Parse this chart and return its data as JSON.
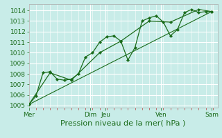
{
  "xlabel": "Pression niveau de la mer( hPa )",
  "bg_color": "#c8ece8",
  "grid_color": "#ffffff",
  "line_color": "#1a6b1a",
  "ylim": [
    1004.8,
    1014.6
  ],
  "yticks": [
    1005,
    1006,
    1007,
    1008,
    1009,
    1010,
    1011,
    1012,
    1013,
    1014
  ],
  "xlim": [
    0,
    160
  ],
  "day_labels": [
    "Mer",
    "Dim",
    "Jeu",
    "Ven",
    "Sam"
  ],
  "day_positions": [
    0,
    52,
    65,
    112,
    155
  ],
  "series1_x": [
    0,
    6,
    12,
    18,
    24,
    30,
    36,
    42,
    48,
    54,
    60,
    66,
    72,
    78,
    84,
    90,
    96,
    102,
    108,
    114,
    120,
    126,
    132,
    138,
    144,
    150,
    155
  ],
  "series1_y": [
    1005.1,
    1005.9,
    1008.1,
    1008.2,
    1007.5,
    1007.4,
    1007.5,
    1008.0,
    1009.6,
    1010.0,
    1011.0,
    1011.5,
    1011.6,
    1011.1,
    1009.3,
    1010.5,
    1013.0,
    1013.3,
    1013.5,
    1012.9,
    1011.6,
    1012.2,
    1013.8,
    1014.1,
    1013.8,
    1013.9,
    1013.9
  ],
  "series2_x": [
    0,
    18,
    36,
    60,
    78,
    102,
    120,
    144,
    155
  ],
  "series2_y": [
    1005.1,
    1008.1,
    1007.4,
    1010.0,
    1011.1,
    1013.0,
    1012.9,
    1014.1,
    1013.9
  ],
  "series3_x": [
    0,
    155
  ],
  "series3_y": [
    1005.1,
    1013.9
  ],
  "xlabel_fontsize": 8,
  "ytick_fontsize": 6.5,
  "xtick_fontsize": 6.5
}
